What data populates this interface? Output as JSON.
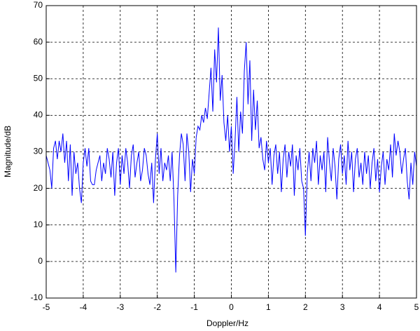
{
  "chart_data": {
    "type": "line",
    "xlabel": "Doppler/Hz",
    "ylabel": "Magnitude/dB",
    "x": [
      -5.0,
      -4.95,
      -4.9,
      -4.85,
      -4.8,
      -4.75,
      -4.7,
      -4.65,
      -4.6,
      -4.55,
      -4.5,
      -4.45,
      -4.4,
      -4.35,
      -4.3,
      -4.25,
      -4.2,
      -4.15,
      -4.1,
      -4.05,
      -4.0,
      -3.95,
      -3.9,
      -3.85,
      -3.8,
      -3.75,
      -3.7,
      -3.65,
      -3.6,
      -3.55,
      -3.5,
      -3.45,
      -3.4,
      -3.35,
      -3.3,
      -3.25,
      -3.2,
      -3.15,
      -3.1,
      -3.05,
      -3.0,
      -2.95,
      -2.9,
      -2.85,
      -2.8,
      -2.75,
      -2.7,
      -2.65,
      -2.6,
      -2.55,
      -2.5,
      -2.45,
      -2.4,
      -2.35,
      -2.3,
      -2.25,
      -2.2,
      -2.15,
      -2.1,
      -2.05,
      -2.0,
      -1.95,
      -1.9,
      -1.85,
      -1.8,
      -1.75,
      -1.7,
      -1.65,
      -1.6,
      -1.55,
      -1.5,
      -1.45,
      -1.4,
      -1.35,
      -1.3,
      -1.25,
      -1.2,
      -1.15,
      -1.1,
      -1.05,
      -1.0,
      -0.95,
      -0.9,
      -0.85,
      -0.8,
      -0.75,
      -0.7,
      -0.65,
      -0.6,
      -0.55,
      -0.5,
      -0.45,
      -0.4,
      -0.35,
      -0.3,
      -0.25,
      -0.2,
      -0.15,
      -0.1,
      -0.05,
      0.0,
      0.05,
      0.1,
      0.15,
      0.2,
      0.25,
      0.3,
      0.35,
      0.4,
      0.45,
      0.5,
      0.55,
      0.6,
      0.65,
      0.7,
      0.75,
      0.8,
      0.85,
      0.9,
      0.95,
      1.0,
      1.05,
      1.1,
      1.15,
      1.2,
      1.25,
      1.3,
      1.35,
      1.4,
      1.45,
      1.5,
      1.55,
      1.6,
      1.65,
      1.7,
      1.75,
      1.8,
      1.85,
      1.9,
      1.95,
      2.0,
      2.05,
      2.1,
      2.15,
      2.2,
      2.25,
      2.3,
      2.35,
      2.4,
      2.45,
      2.5,
      2.55,
      2.6,
      2.65,
      2.7,
      2.75,
      2.8,
      2.85,
      2.9,
      2.95,
      3.0,
      3.05,
      3.1,
      3.15,
      3.2,
      3.25,
      3.3,
      3.35,
      3.4,
      3.45,
      3.5,
      3.55,
      3.6,
      3.65,
      3.7,
      3.75,
      3.8,
      3.85,
      3.9,
      3.95,
      4.0,
      4.05,
      4.1,
      4.15,
      4.2,
      4.25,
      4.3,
      4.35,
      4.4,
      4.45,
      4.5,
      4.55,
      4.6,
      4.65,
      4.7,
      4.75,
      4.8,
      4.85,
      4.9,
      4.95,
      5.0
    ],
    "values": [
      29,
      27,
      25,
      20,
      31,
      33,
      28,
      33,
      30,
      35,
      27,
      33,
      22,
      32,
      18,
      30,
      24,
      27,
      20,
      16,
      27,
      31,
      26,
      31,
      22,
      21,
      21,
      25,
      27,
      29,
      22,
      27,
      24,
      31,
      28,
      23,
      30,
      18,
      27,
      31,
      21,
      29,
      24,
      31,
      27,
      20,
      29,
      32,
      23,
      27,
      30,
      22,
      25,
      31,
      29,
      24,
      21,
      27,
      16,
      28,
      35,
      24,
      31,
      22,
      27,
      25,
      29,
      22,
      30,
      17,
      -3,
      18,
      29,
      35,
      32,
      22,
      35,
      30,
      19,
      28,
      24,
      34,
      37,
      36,
      40,
      38,
      42,
      39,
      46,
      53,
      41,
      58,
      49,
      64,
      44,
      51,
      38,
      33,
      40,
      30,
      37,
      24,
      33,
      45,
      30,
      41,
      35,
      52,
      60,
      43,
      55,
      33,
      47,
      36,
      44,
      31,
      34,
      28,
      25,
      33,
      27,
      31,
      21,
      29,
      32,
      24,
      30,
      19,
      28,
      32,
      23,
      30,
      26,
      32,
      18,
      29,
      25,
      31,
      22,
      20,
      7,
      24,
      30,
      22,
      31,
      27,
      33,
      21,
      29,
      25,
      30,
      19,
      34,
      27,
      22,
      31,
      26,
      17,
      28,
      32,
      24,
      29,
      21,
      33,
      25,
      30,
      19,
      28,
      31,
      23,
      27,
      21,
      30,
      24,
      29,
      20,
      27,
      31,
      22,
      28,
      19,
      26,
      30,
      21,
      28,
      25,
      32,
      23,
      35,
      29,
      33,
      30,
      24,
      28,
      31,
      22,
      17,
      27,
      21,
      30,
      26
    ],
    "color": "#0000ff",
    "xlim": [
      -5,
      5
    ],
    "xticks": [
      -5,
      -4,
      -3,
      -2,
      -1,
      0,
      1,
      2,
      3,
      4,
      5
    ],
    "ylim": [
      -10,
      70
    ],
    "yticks": [
      -10,
      0,
      10,
      20,
      30,
      40,
      50,
      60,
      70
    ],
    "grid": true
  }
}
